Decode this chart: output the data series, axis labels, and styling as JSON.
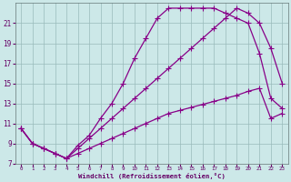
{
  "xlabel": "Windchill (Refroidissement éolien,°C)",
  "background_color": "#cce8e8",
  "line_color": "#880088",
  "grid_color": "#99bbbb",
  "xlim": [
    -0.5,
    23.5
  ],
  "ylim": [
    7,
    23
  ],
  "xticks": [
    0,
    1,
    2,
    3,
    4,
    5,
    6,
    7,
    8,
    9,
    10,
    11,
    12,
    13,
    14,
    15,
    16,
    17,
    18,
    19,
    20,
    21,
    22,
    23
  ],
  "yticks": [
    7,
    9,
    11,
    13,
    15,
    17,
    19,
    21
  ],
  "curve1_x": [
    0,
    1,
    2,
    3,
    4,
    5,
    6,
    7,
    8,
    9,
    10,
    11,
    12,
    13,
    14,
    15,
    16,
    17,
    18,
    19,
    20,
    21,
    22,
    23
  ],
  "curve1_y": [
    10.5,
    9.0,
    8.5,
    8.0,
    7.5,
    8.0,
    8.5,
    9.0,
    9.5,
    10.0,
    10.5,
    11.0,
    11.5,
    12.0,
    12.3,
    12.6,
    12.9,
    13.2,
    13.5,
    13.8,
    14.2,
    14.5,
    11.5,
    12.0
  ],
  "curve2_x": [
    0,
    1,
    2,
    3,
    4,
    5,
    6,
    7,
    8,
    9,
    10,
    11,
    12,
    13,
    14,
    15,
    16,
    17,
    18,
    19,
    20,
    21,
    22,
    23
  ],
  "curve2_y": [
    10.5,
    9.0,
    8.5,
    8.0,
    7.5,
    8.5,
    9.5,
    10.5,
    11.5,
    12.5,
    13.5,
    14.5,
    15.5,
    16.5,
    17.5,
    18.5,
    19.5,
    20.5,
    21.5,
    22.5,
    22.0,
    21.0,
    18.5,
    15.0
  ],
  "curve3_x": [
    0,
    1,
    2,
    3,
    4,
    5,
    6,
    7,
    8,
    9,
    10,
    11,
    12,
    13,
    14,
    15,
    16,
    17,
    18,
    19,
    20,
    21,
    22,
    23
  ],
  "curve3_y": [
    10.5,
    9.0,
    8.5,
    8.0,
    7.5,
    8.8,
    9.8,
    11.5,
    13.0,
    15.0,
    17.5,
    19.5,
    21.5,
    22.5,
    22.5,
    22.5,
    22.5,
    22.5,
    22.0,
    21.5,
    21.0,
    18.0,
    13.5,
    12.5
  ]
}
